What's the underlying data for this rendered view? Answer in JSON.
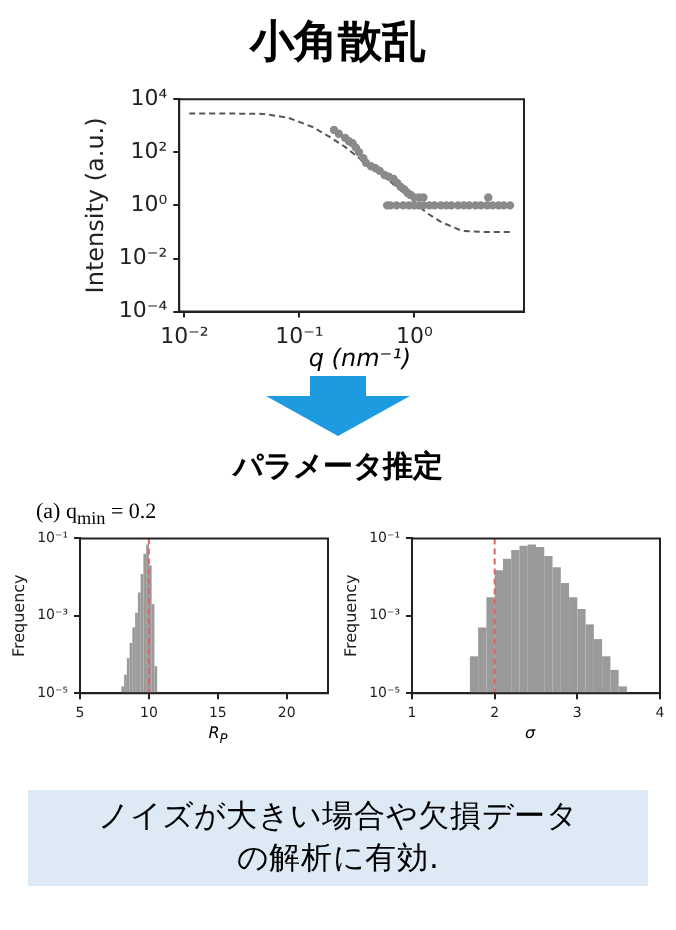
{
  "chart_data": [
    {
      "type": "scatter",
      "title": "小角散乱",
      "xlabel": "q (nm⁻¹)",
      "ylabel": "Intensity (a.u.)",
      "log": "xy",
      "xlim": [
        0.009,
        9
      ],
      "ylim": [
        0.0001,
        10000
      ],
      "xticks": [
        {
          "value": 0.01,
          "label": "10⁻²"
        },
        {
          "value": 0.1,
          "label": "10⁻¹"
        },
        {
          "value": 1,
          "label": "10⁰"
        }
      ],
      "yticks": [
        {
          "value": 0.0001,
          "label": "10⁻⁴"
        },
        {
          "value": 0.01,
          "label": "10⁻²"
        },
        {
          "value": 1,
          "label": "10⁰"
        },
        {
          "value": 100,
          "label": "10²"
        },
        {
          "value": 10000,
          "label": "10⁴"
        }
      ],
      "grid": false,
      "legend": false,
      "series": [
        {
          "type": "scatter",
          "marker": "circle",
          "color": "#8a8a8a",
          "x": [
            0.2,
            0.22,
            0.25,
            0.27,
            0.29,
            0.31,
            0.33,
            0.36,
            0.38,
            0.42,
            0.46,
            0.5,
            0.55,
            0.6,
            0.66,
            0.71,
            0.76,
            0.82,
            0.87,
            0.93,
            1.0,
            1.1,
            1.2,
            4.4,
            0.58,
            0.62,
            0.7,
            0.8,
            0.9,
            1.0,
            1.1,
            1.2,
            1.35,
            1.5,
            1.7,
            1.9,
            2.1,
            2.4,
            2.7,
            3.0,
            3.4,
            3.8,
            4.3,
            4.8,
            5.4,
            6.0,
            6.8
          ],
          "values": [
            700,
            500,
            350,
            260,
            220,
            150,
            100,
            60,
            40,
            30,
            25,
            20,
            14,
            12,
            10,
            7,
            5,
            4,
            3,
            2.5,
            2,
            2,
            2,
            2,
            1,
            1,
            1,
            1,
            1,
            1,
            1,
            1,
            1,
            1,
            1,
            1,
            1,
            1,
            1,
            1,
            1,
            1,
            1,
            1,
            1,
            1,
            1
          ]
        },
        {
          "type": "line",
          "color": "#555555",
          "line_style": "dashed",
          "x": [
            0.011,
            0.02,
            0.048,
            0.08,
            0.13,
            0.18,
            0.25,
            0.35,
            0.5,
            0.7,
            1.0,
            1.3,
            1.7,
            2.6,
            4.0,
            6.8
          ],
          "values": [
            2900,
            2900,
            2800,
            2000,
            900,
            400,
            160,
            50,
            17,
            5,
            1.3,
            0.5,
            0.24,
            0.11,
            0.1,
            0.1
          ]
        }
      ]
    },
    {
      "type": "histogram",
      "title": "(a) q$_{min}$ = 0.2",
      "annotations": [
        "パラメータ推定"
      ],
      "xlabel": "R$_{P}$",
      "ylabel": "Frequency",
      "log": "y",
      "color": "#9a9a9a",
      "bins": [
        8.0,
        8.2,
        8.4,
        8.6,
        8.8,
        9.0,
        9.2,
        9.4,
        9.6,
        9.8,
        10.0,
        10.2,
        10.4,
        10.6
      ],
      "values": [
        1.5e-05,
        3e-05,
        8e-05,
        0.0002,
        0.0005,
        0.0012,
        0.004,
        0.012,
        0.04,
        0.07,
        0.02,
        0.002,
        5e-05
      ],
      "xlim": [
        5,
        23
      ],
      "xticks": [
        5,
        10,
        15,
        20
      ],
      "ylim": [
        1e-05,
        0.1
      ],
      "yticks": [
        {
          "value": 1e-05,
          "label": "10⁻⁵"
        },
        {
          "value": 0.001,
          "label": "10⁻³"
        },
        {
          "value": 0.1,
          "label": "10⁻¹"
        }
      ],
      "grid": false,
      "legend": false,
      "ref_lines": [
        {
          "axis": "x",
          "value": 10,
          "color": "#e06666",
          "line_style": "dashed"
        }
      ]
    },
    {
      "type": "histogram",
      "annotations": [
        "ノイズが大きい場合や欠損データの解析に有効."
      ],
      "xlabel": "σ",
      "ylabel": "Frequency",
      "log": "y",
      "color": "#9a9a9a",
      "bins": [
        1.7,
        1.8,
        1.9,
        2.0,
        2.1,
        2.2,
        2.3,
        2.4,
        2.5,
        2.6,
        2.7,
        2.8,
        2.9,
        3.0,
        3.1,
        3.2,
        3.3,
        3.4,
        3.5,
        3.6
      ],
      "values": [
        9e-05,
        0.0005,
        0.003,
        0.015,
        0.03,
        0.05,
        0.065,
        0.07,
        0.06,
        0.035,
        0.018,
        0.007,
        0.003,
        0.0015,
        0.0006,
        0.00025,
        9e-05,
        4e-05,
        1.5e-05
      ],
      "xlim": [
        1,
        4
      ],
      "xticks": [
        1,
        2,
        3,
        4
      ],
      "ylim": [
        1e-05,
        0.1
      ],
      "yticks": [
        {
          "value": 1e-05,
          "label": "10⁻⁵"
        },
        {
          "value": 0.001,
          "label": "10⁻³"
        },
        {
          "value": 0.1,
          "label": "10⁻¹"
        }
      ],
      "grid": false,
      "legend": false,
      "ref_lines": [
        {
          "axis": "x",
          "value": 2,
          "color": "#e06666",
          "line_style": "dashed"
        }
      ]
    }
  ]
}
